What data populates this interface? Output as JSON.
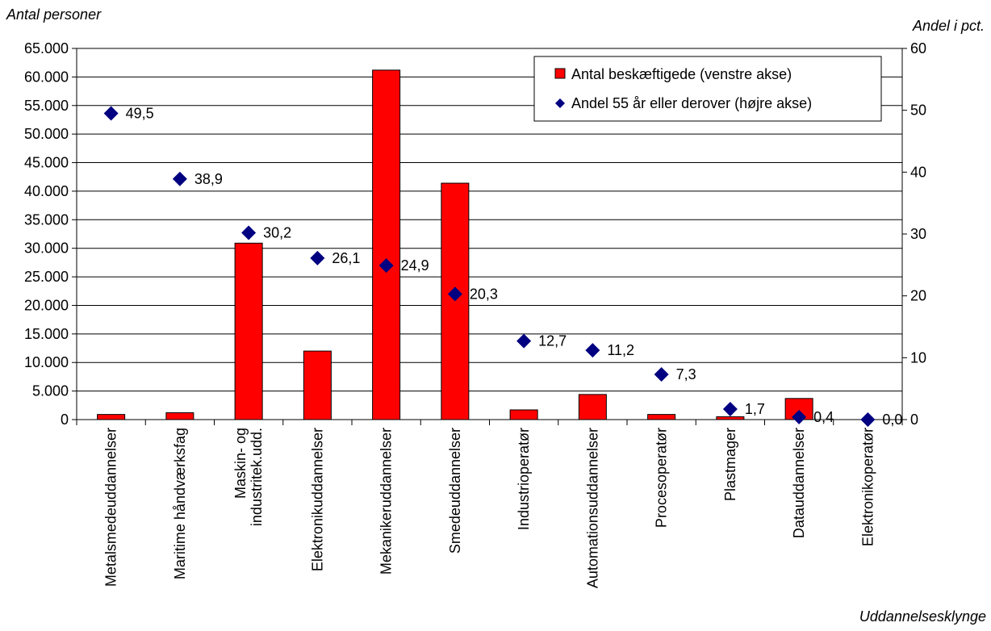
{
  "chart_data": {
    "type": "bar",
    "y_left_label": "Antal personer",
    "y_right_label": "Andel i pct.",
    "xlabel": "Uddannelsesklynge",
    "categories": [
      [
        "Metalsmedeuddannelser"
      ],
      [
        "Maritime håndværksfag"
      ],
      [
        "Maskin- og",
        "industritek.udd."
      ],
      [
        "Elektronikuddannelser"
      ],
      [
        "Mekanikeruddannelser"
      ],
      [
        "Smedeuddannelser"
      ],
      [
        "Industrioperatør"
      ],
      [
        "Automationsuddannelser"
      ],
      [
        "Procesoperatør"
      ],
      [
        "Plastmager"
      ],
      [
        "Datauddannelser"
      ],
      [
        "Elektronikoperatør"
      ]
    ],
    "series": [
      {
        "name": "Antal beskæftigede (venstre akse)",
        "type": "bar",
        "axis": "left",
        "color": "#ff0000",
        "values": [
          900,
          1200,
          30900,
          12000,
          61200,
          41400,
          1700,
          4400,
          900,
          500,
          3700,
          0
        ]
      },
      {
        "name": "Andel 55 år eller derover (højre akse)",
        "type": "scatter",
        "axis": "right",
        "color": "#000080",
        "values": [
          49.5,
          38.9,
          30.2,
          26.1,
          24.9,
          20.3,
          12.7,
          11.2,
          7.3,
          1.7,
          0.4,
          0.0
        ],
        "labels": [
          "49,5",
          "38,9",
          "30,2",
          "26,1",
          "24,9",
          "20,3",
          "12,7",
          "11,2",
          "7,3",
          "1,7",
          "0,4",
          "0,0"
        ]
      }
    ],
    "y_left": {
      "lim": [
        0,
        65000
      ],
      "ticks": [
        "0",
        "5.000",
        "10.000",
        "15.000",
        "20.000",
        "25.000",
        "30.000",
        "35.000",
        "40.000",
        "45.000",
        "50.000",
        "55.000",
        "60.000",
        "65.000"
      ]
    },
    "y_right": {
      "lim": [
        0,
        60
      ],
      "ticks": [
        "0",
        "10",
        "20",
        "30",
        "40",
        "50",
        "60"
      ]
    },
    "grid": true,
    "legend_position": "top-right"
  }
}
